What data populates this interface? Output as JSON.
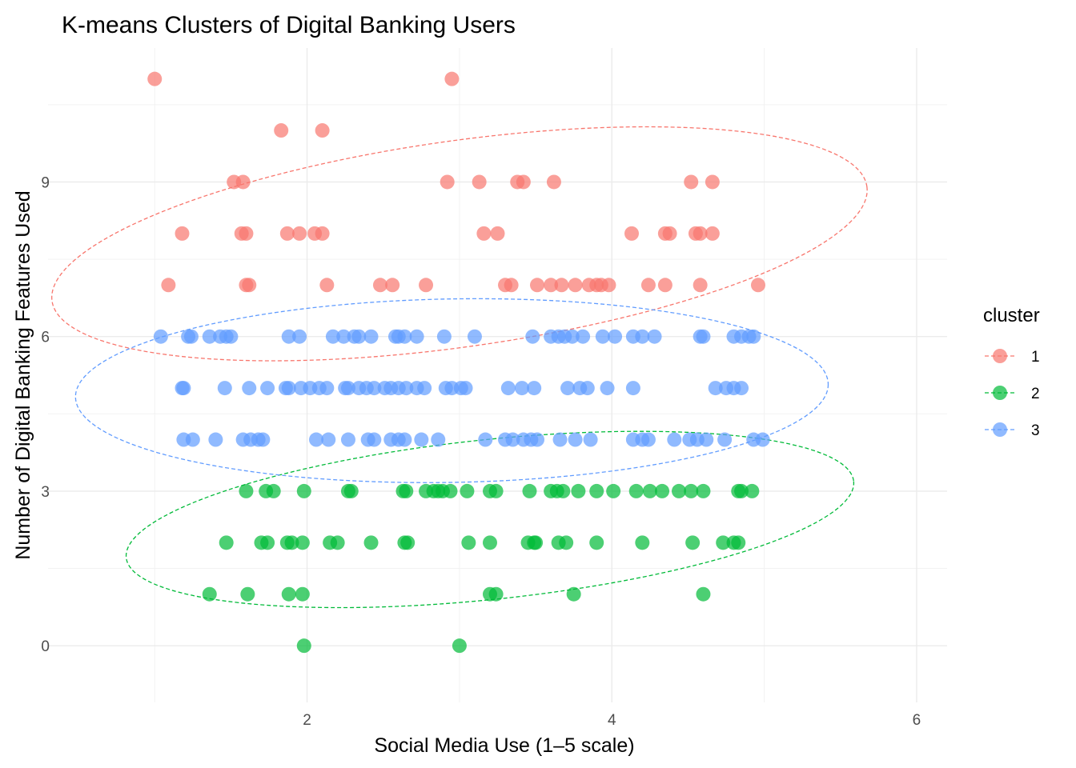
{
  "chart_data": {
    "type": "scatter",
    "title": "K-means Clusters of Digital Banking Users",
    "xlabel": "Social Media Use (1–5 scale)",
    "ylabel": "Number of Digital Banking Features Used",
    "xlim": [
      0.3,
      6.2
    ],
    "ylim": [
      -1.1,
      11.6
    ],
    "x_ticks": [
      2,
      4,
      6
    ],
    "y_ticks": [
      0,
      3,
      6,
      9
    ],
    "grid": true,
    "legend": {
      "title": "cluster",
      "position": "right",
      "entries": [
        {
          "label": "1",
          "color": "#F8766D"
        },
        {
          "label": "2",
          "color": "#00BA38"
        },
        {
          "label": "3",
          "color": "#619CFF"
        }
      ]
    },
    "series": [
      {
        "name": "1",
        "color": "#F8766D",
        "ellipse": {
          "cx": 3.0,
          "cy": 7.8,
          "rx": 2.7,
          "ry": 2.0,
          "angle": -8
        },
        "points": [
          [
            1.0,
            11
          ],
          [
            2.95,
            11
          ],
          [
            1.83,
            10
          ],
          [
            2.1,
            10
          ],
          [
            1.52,
            9
          ],
          [
            1.58,
            9
          ],
          [
            2.92,
            9
          ],
          [
            3.13,
            9
          ],
          [
            3.38,
            9
          ],
          [
            3.42,
            9
          ],
          [
            3.62,
            9
          ],
          [
            4.52,
            9
          ],
          [
            4.66,
            9
          ],
          [
            1.18,
            8
          ],
          [
            1.57,
            8
          ],
          [
            1.6,
            8
          ],
          [
            1.87,
            8
          ],
          [
            1.95,
            8
          ],
          [
            2.05,
            8
          ],
          [
            2.1,
            8
          ],
          [
            3.16,
            8
          ],
          [
            3.25,
            8
          ],
          [
            4.13,
            8
          ],
          [
            4.35,
            8
          ],
          [
            4.38,
            8
          ],
          [
            4.55,
            8
          ],
          [
            4.58,
            8
          ],
          [
            4.66,
            8
          ],
          [
            1.09,
            7
          ],
          [
            1.6,
            7
          ],
          [
            1.62,
            7
          ],
          [
            2.13,
            7
          ],
          [
            2.48,
            7
          ],
          [
            2.56,
            7
          ],
          [
            2.78,
            7
          ],
          [
            3.3,
            7
          ],
          [
            3.34,
            7
          ],
          [
            3.51,
            7
          ],
          [
            3.6,
            7
          ],
          [
            3.67,
            7
          ],
          [
            3.76,
            7
          ],
          [
            3.85,
            7
          ],
          [
            3.9,
            7
          ],
          [
            3.93,
            7
          ],
          [
            3.98,
            7
          ],
          [
            4.24,
            7
          ],
          [
            4.35,
            7
          ],
          [
            4.58,
            7
          ],
          [
            4.96,
            7
          ]
        ]
      },
      {
        "name": "2",
        "color": "#00BA38",
        "ellipse": {
          "cx": 3.2,
          "cy": 2.45,
          "rx": 2.4,
          "ry": 1.55,
          "angle": -6
        },
        "points": [
          [
            1.6,
            3
          ],
          [
            1.73,
            3
          ],
          [
            1.78,
            3
          ],
          [
            1.98,
            3
          ],
          [
            2.27,
            3
          ],
          [
            2.29,
            3
          ],
          [
            2.63,
            3
          ],
          [
            2.65,
            3
          ],
          [
            2.78,
            3
          ],
          [
            2.83,
            3
          ],
          [
            2.86,
            3
          ],
          [
            2.89,
            3
          ],
          [
            2.94,
            3
          ],
          [
            3.05,
            3
          ],
          [
            3.2,
            3
          ],
          [
            3.24,
            3
          ],
          [
            3.46,
            3
          ],
          [
            3.6,
            3
          ],
          [
            3.64,
            3
          ],
          [
            3.68,
            3
          ],
          [
            3.78,
            3
          ],
          [
            3.9,
            3
          ],
          [
            4.01,
            3
          ],
          [
            4.16,
            3
          ],
          [
            4.25,
            3
          ],
          [
            4.33,
            3
          ],
          [
            4.44,
            3
          ],
          [
            4.52,
            3
          ],
          [
            4.6,
            3
          ],
          [
            4.83,
            3
          ],
          [
            4.85,
            3
          ],
          [
            4.92,
            3
          ],
          [
            1.47,
            2
          ],
          [
            1.7,
            2
          ],
          [
            1.74,
            2
          ],
          [
            1.87,
            2
          ],
          [
            1.9,
            2
          ],
          [
            1.97,
            2
          ],
          [
            2.15,
            2
          ],
          [
            2.2,
            2
          ],
          [
            2.42,
            2
          ],
          [
            2.64,
            2
          ],
          [
            2.66,
            2
          ],
          [
            3.06,
            2
          ],
          [
            3.2,
            2
          ],
          [
            3.45,
            2
          ],
          [
            3.49,
            2
          ],
          [
            3.5,
            2
          ],
          [
            3.65,
            2
          ],
          [
            3.7,
            2
          ],
          [
            3.9,
            2
          ],
          [
            4.2,
            2
          ],
          [
            4.53,
            2
          ],
          [
            4.73,
            2
          ],
          [
            4.8,
            2
          ],
          [
            4.83,
            2
          ],
          [
            1.36,
            1
          ],
          [
            1.61,
            1
          ],
          [
            1.88,
            1
          ],
          [
            1.97,
            1
          ],
          [
            3.2,
            1
          ],
          [
            3.24,
            1
          ],
          [
            3.75,
            1
          ],
          [
            4.6,
            1
          ],
          [
            1.98,
            0
          ],
          [
            3.0,
            0
          ]
        ]
      },
      {
        "name": "3",
        "color": "#619CFF",
        "ellipse": {
          "cx": 2.95,
          "cy": 4.95,
          "rx": 2.47,
          "ry": 1.78,
          "angle": -1
        },
        "points": [
          [
            1.04,
            6
          ],
          [
            1.22,
            6
          ],
          [
            1.24,
            6
          ],
          [
            1.36,
            6
          ],
          [
            1.43,
            6
          ],
          [
            1.47,
            6
          ],
          [
            1.5,
            6
          ],
          [
            1.88,
            6
          ],
          [
            1.95,
            6
          ],
          [
            2.17,
            6
          ],
          [
            2.24,
            6
          ],
          [
            2.31,
            6
          ],
          [
            2.34,
            6
          ],
          [
            2.42,
            6
          ],
          [
            2.58,
            6
          ],
          [
            2.6,
            6
          ],
          [
            2.64,
            6
          ],
          [
            2.72,
            6
          ],
          [
            2.9,
            6
          ],
          [
            3.1,
            6
          ],
          [
            3.48,
            6
          ],
          [
            3.6,
            6
          ],
          [
            3.65,
            6
          ],
          [
            3.69,
            6
          ],
          [
            3.74,
            6
          ],
          [
            3.81,
            6
          ],
          [
            3.94,
            6
          ],
          [
            4.02,
            6
          ],
          [
            4.14,
            6
          ],
          [
            4.2,
            6
          ],
          [
            4.28,
            6
          ],
          [
            4.58,
            6
          ],
          [
            4.6,
            6
          ],
          [
            4.8,
            6
          ],
          [
            4.85,
            6
          ],
          [
            4.9,
            6
          ],
          [
            4.93,
            6
          ],
          [
            1.18,
            5
          ],
          [
            1.19,
            5
          ],
          [
            1.46,
            5
          ],
          [
            1.62,
            5
          ],
          [
            1.74,
            5
          ],
          [
            1.86,
            5
          ],
          [
            1.88,
            5
          ],
          [
            1.96,
            5
          ],
          [
            2.02,
            5
          ],
          [
            2.08,
            5
          ],
          [
            2.13,
            5
          ],
          [
            2.25,
            5
          ],
          [
            2.27,
            5
          ],
          [
            2.34,
            5
          ],
          [
            2.39,
            5
          ],
          [
            2.44,
            5
          ],
          [
            2.51,
            5
          ],
          [
            2.55,
            5
          ],
          [
            2.6,
            5
          ],
          [
            2.65,
            5
          ],
          [
            2.72,
            5
          ],
          [
            2.77,
            5
          ],
          [
            2.91,
            5
          ],
          [
            2.95,
            5
          ],
          [
            3.01,
            5
          ],
          [
            3.04,
            5
          ],
          [
            3.32,
            5
          ],
          [
            3.41,
            5
          ],
          [
            3.49,
            5
          ],
          [
            3.71,
            5
          ],
          [
            3.79,
            5
          ],
          [
            3.84,
            5
          ],
          [
            3.97,
            5
          ],
          [
            4.14,
            5
          ],
          [
            4.68,
            5
          ],
          [
            4.75,
            5
          ],
          [
            4.8,
            5
          ],
          [
            4.85,
            5
          ],
          [
            1.19,
            4
          ],
          [
            1.25,
            4
          ],
          [
            1.4,
            4
          ],
          [
            1.58,
            4
          ],
          [
            1.63,
            4
          ],
          [
            1.68,
            4
          ],
          [
            1.71,
            4
          ],
          [
            2.06,
            4
          ],
          [
            2.14,
            4
          ],
          [
            2.27,
            4
          ],
          [
            2.4,
            4
          ],
          [
            2.44,
            4
          ],
          [
            2.55,
            4
          ],
          [
            2.6,
            4
          ],
          [
            2.64,
            4
          ],
          [
            2.75,
            4
          ],
          [
            2.86,
            4
          ],
          [
            3.17,
            4
          ],
          [
            3.3,
            4
          ],
          [
            3.35,
            4
          ],
          [
            3.42,
            4
          ],
          [
            3.47,
            4
          ],
          [
            3.51,
            4
          ],
          [
            3.66,
            4
          ],
          [
            3.76,
            4
          ],
          [
            3.86,
            4
          ],
          [
            4.14,
            4
          ],
          [
            4.2,
            4
          ],
          [
            4.24,
            4
          ],
          [
            4.41,
            4
          ],
          [
            4.51,
            4
          ],
          [
            4.56,
            4
          ],
          [
            4.62,
            4
          ],
          [
            4.74,
            4
          ],
          [
            4.93,
            4
          ],
          [
            4.99,
            4
          ]
        ]
      }
    ]
  }
}
